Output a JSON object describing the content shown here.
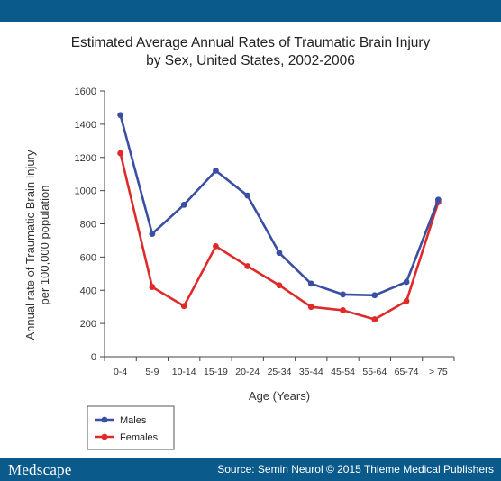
{
  "footer": {
    "brand": "Medscape",
    "source": "Source: Semin Neurol © 2015 Thieme Medical Publishers"
  },
  "chart_data": {
    "type": "line",
    "title_line1": "Estimated Average Annual Rates of Traumatic Brain Injury",
    "title_line2": "by Sex, United States, 2002-2006",
    "xlabel": "Age (Years)",
    "ylabel_line1": "Annual rate of Traumatic Brain Injury",
    "ylabel_line2": "per 100,000 population",
    "ylim": [
      0,
      1600
    ],
    "yticks": [
      0,
      200,
      400,
      600,
      800,
      1000,
      1200,
      1400,
      1600
    ],
    "categories": [
      "0-4",
      "5-9",
      "10-14",
      "15-19",
      "20-24",
      "25-34",
      "35-44",
      "45-54",
      "55-64",
      "65-74",
      "> 75"
    ],
    "grid": false,
    "legend_position": "bottom-left",
    "series": [
      {
        "name": "Males",
        "color": "#3a4fa3",
        "values": [
          1455,
          740,
          915,
          1120,
          970,
          625,
          440,
          375,
          370,
          450,
          945
        ]
      },
      {
        "name": "Females",
        "color": "#e02a2a",
        "values": [
          1225,
          420,
          305,
          665,
          545,
          430,
          300,
          280,
          225,
          335,
          930
        ]
      }
    ]
  }
}
